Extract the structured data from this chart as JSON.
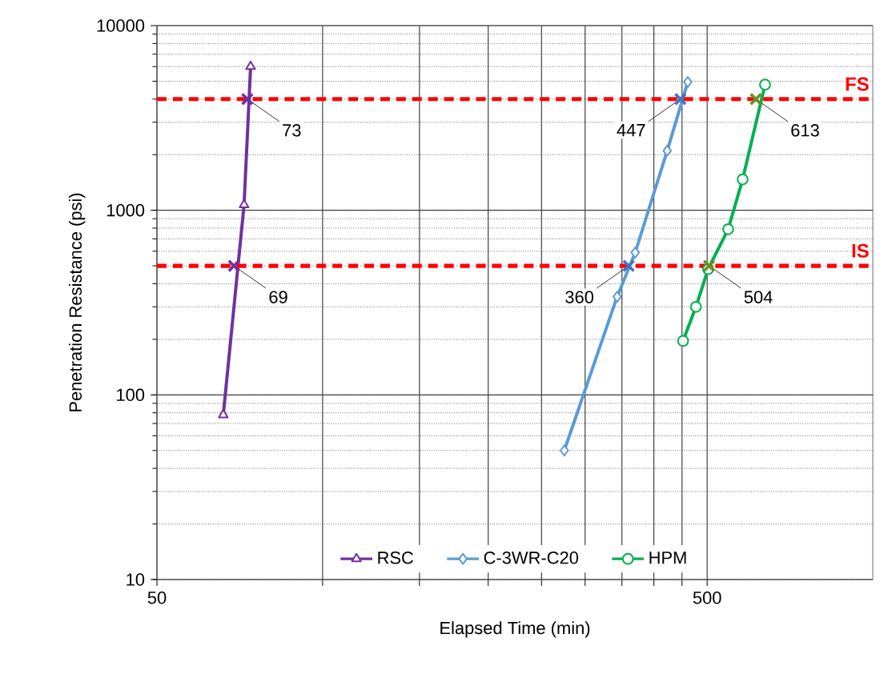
{
  "chart_data": {
    "type": "line",
    "xlabel": "Elapsed Time (min)",
    "ylabel": "Penetration Resistance (psi)",
    "log": "xy",
    "xlim": [
      50,
      1000
    ],
    "ylim": [
      10,
      10000
    ],
    "xticks": [
      50,
      {
        "value": 100,
        "label": null
      },
      {
        "value": 150,
        "label": null
      },
      {
        "value": 200,
        "label": null
      },
      {
        "value": 250,
        "label": null
      },
      {
        "value": 300,
        "label": null
      },
      {
        "value": 350,
        "label": null
      },
      {
        "value": 400,
        "label": null
      },
      {
        "value": 450,
        "label": null
      },
      500
    ],
    "yticks": [
      10,
      100,
      1000,
      10000
    ],
    "grid": true,
    "legend": "bottom",
    "series": [
      {
        "name": "RSC",
        "color": "#7030a0",
        "marker": "triangle",
        "x": [
          66,
          72,
          74
        ],
        "values": [
          78,
          1070,
          6000
        ]
      },
      {
        "name": "C-3WR-C20",
        "color": "#5b9bd5",
        "marker": "diamond",
        "x": [
          275,
          343,
          370,
          423,
          461
        ],
        "values": [
          50,
          340,
          590,
          2100,
          4950
        ]
      },
      {
        "name": "HPM",
        "color": "#00b050",
        "marker": "circle",
        "x": [
          452,
          477,
          502,
          546,
          580,
          637
        ],
        "values": [
          196,
          300,
          480,
          790,
          1470,
          4790
        ]
      },
      {
        "type": "scatter",
        "color": "#7030a0",
        "marker": "cross",
        "x": [
          69,
          73
        ],
        "values": [
          500,
          4000
        ]
      },
      {
        "type": "scatter",
        "color": "#4472c4",
        "marker": "cross",
        "x": [
          360,
          447
        ],
        "values": [
          500,
          4000
        ]
      },
      {
        "type": "scatter",
        "color": "#6b8e23",
        "marker": "cross",
        "x": [
          504,
          613
        ],
        "values": [
          500,
          4000
        ]
      }
    ],
    "annotations": [
      {
        "text": "69",
        "x": 69,
        "y": 500
      },
      {
        "text": "73",
        "x": 73,
        "y": 4000
      },
      {
        "text": "360",
        "x": 360,
        "y": 500
      },
      {
        "text": "447",
        "x": 447,
        "y": 4000
      },
      {
        "text": "504",
        "x": 504,
        "y": 500
      },
      {
        "text": "613",
        "x": 613,
        "y": 4000
      }
    ],
    "ref_lines": [
      {
        "axis": "y",
        "value": 500,
        "label": "IS",
        "color": "#ff0000",
        "line_style": "dashed"
      },
      {
        "axis": "y",
        "value": 4000,
        "label": "FS",
        "color": "#ff0000",
        "line_style": "dashed"
      }
    ]
  }
}
